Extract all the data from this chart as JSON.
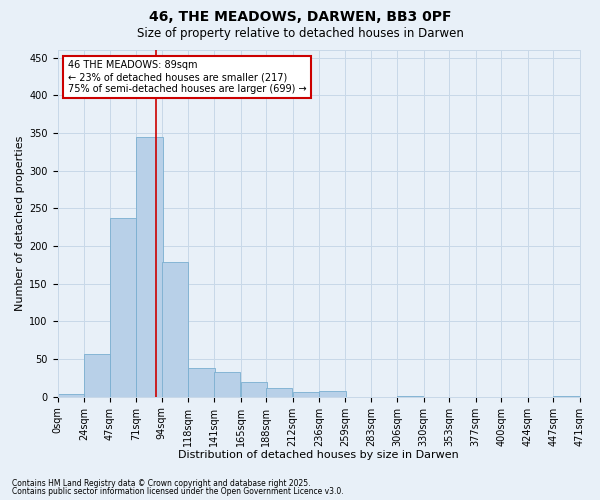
{
  "title": "46, THE MEADOWS, DARWEN, BB3 0PF",
  "subtitle": "Size of property relative to detached houses in Darwen",
  "xlabel": "Distribution of detached houses by size in Darwen",
  "ylabel": "Number of detached properties",
  "footnote1": "Contains HM Land Registry data © Crown copyright and database right 2025.",
  "footnote2": "Contains public sector information licensed under the Open Government Licence v3.0.",
  "annotation_title": "46 THE MEADOWS: 89sqm",
  "annotation_line1": "← 23% of detached houses are smaller (217)",
  "annotation_line2": "75% of semi-detached houses are larger (699) →",
  "property_size": 89,
  "bins": [
    0,
    24,
    47,
    71,
    94,
    118,
    141,
    165,
    188,
    212,
    236,
    259,
    283,
    306,
    330,
    353,
    377,
    400,
    424,
    447,
    471
  ],
  "tick_labels": [
    "0sqm",
    "24sqm",
    "47sqm",
    "71sqm",
    "94sqm",
    "118sqm",
    "141sqm",
    "165sqm",
    "188sqm",
    "212sqm",
    "236sqm",
    "259sqm",
    "283sqm",
    "306sqm",
    "330sqm",
    "353sqm",
    "377sqm",
    "400sqm",
    "424sqm",
    "447sqm",
    "471sqm"
  ],
  "values": [
    3,
    57,
    237,
    345,
    179,
    38,
    33,
    20,
    12,
    6,
    8,
    0,
    0,
    1,
    0,
    0,
    0,
    0,
    0,
    1
  ],
  "bar_color": "#b8d0e8",
  "bar_edge_color": "#7aaed0",
  "line_color": "#cc0000",
  "grid_color": "#c8d8e8",
  "background_color": "#e8f0f8",
  "annotation_box_color": "#ffffff",
  "annotation_border_color": "#cc0000",
  "ylim": [
    0,
    460
  ],
  "yticks": [
    0,
    50,
    100,
    150,
    200,
    250,
    300,
    350,
    400,
    450
  ],
  "title_fontsize": 10,
  "subtitle_fontsize": 8.5,
  "tick_fontsize": 7,
  "label_fontsize": 8,
  "annotation_fontsize": 7,
  "footnote_fontsize": 5.5
}
